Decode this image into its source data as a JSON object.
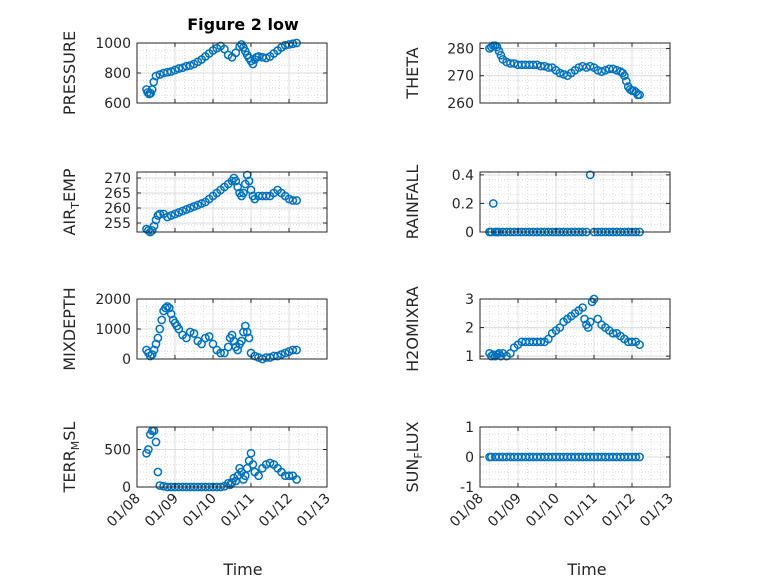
{
  "figure": {
    "title": "Figure 2 low",
    "xlabel": "Time",
    "x_ticks": [
      "01/08",
      "01/09",
      "01/10",
      "01/11",
      "01/12",
      "01/13"
    ]
  },
  "colors": {
    "marker": "#0072BD",
    "axis": "#262626",
    "grid": "#DCDCDC"
  },
  "chart_data": [
    {
      "type": "scatter",
      "ylabel": "PRESSURE",
      "ylim": [
        600,
        1000
      ],
      "yticks": [
        "600",
        "800",
        "1000"
      ],
      "xlim": [
        0,
        5
      ],
      "grid": true,
      "series": [
        {
          "x": [
            0.25,
            0.28,
            0.32,
            0.36,
            0.4,
            0.44,
            0.5,
            0.6,
            0.7,
            0.8,
            0.9,
            1.0,
            1.1,
            1.2,
            1.3,
            1.4,
            1.5,
            1.6,
            1.7,
            1.8,
            1.9,
            2.0,
            2.1,
            2.2,
            2.3,
            2.4,
            2.5,
            2.6,
            2.7,
            2.75,
            2.8,
            2.85,
            2.9,
            2.95,
            3.0,
            3.05,
            3.1,
            3.15,
            3.2,
            3.3,
            3.4,
            3.5,
            3.6,
            3.7,
            3.8,
            3.9,
            4.0,
            4.1,
            4.2
          ],
          "y": [
            690,
            670,
            660,
            665,
            690,
            740,
            780,
            790,
            800,
            805,
            810,
            820,
            830,
            835,
            845,
            850,
            860,
            875,
            890,
            910,
            930,
            950,
            965,
            980,
            960,
            920,
            905,
            935,
            975,
            990,
            970,
            945,
            920,
            900,
            880,
            860,
            890,
            905,
            910,
            905,
            900,
            910,
            930,
            950,
            970,
            985,
            990,
            995,
            1000
          ]
        }
      ]
    },
    {
      "type": "scatter",
      "ylabel": "THETA",
      "ylim": [
        260,
        282
      ],
      "yticks": [
        "260",
        "270",
        "280"
      ],
      "xlim": [
        0,
        5
      ],
      "grid": true,
      "series": [
        {
          "x": [
            0.25,
            0.3,
            0.35,
            0.4,
            0.45,
            0.5,
            0.55,
            0.6,
            0.7,
            0.8,
            0.9,
            1.0,
            1.1,
            1.2,
            1.3,
            1.4,
            1.5,
            1.6,
            1.7,
            1.8,
            1.9,
            2.0,
            2.1,
            2.2,
            2.3,
            2.4,
            2.5,
            2.6,
            2.7,
            2.8,
            2.9,
            3.0,
            3.1,
            3.2,
            3.3,
            3.4,
            3.5,
            3.6,
            3.7,
            3.75,
            3.8,
            3.85,
            3.9,
            3.95,
            4.0,
            4.05,
            4.1,
            4.15,
            4.2
          ],
          "y": [
            280,
            280.5,
            281,
            281,
            280.5,
            279,
            277.5,
            276,
            275,
            274.5,
            274.5,
            274,
            274,
            274,
            274,
            274,
            274,
            273.5,
            273.5,
            273,
            273,
            272,
            271,
            270.5,
            270,
            271,
            272,
            273,
            273.5,
            273,
            273.5,
            273,
            272,
            271.5,
            272,
            272.5,
            272.5,
            272,
            271.5,
            271,
            270,
            268,
            266,
            265,
            264.5,
            264.5,
            264,
            263,
            263
          ]
        }
      ]
    },
    {
      "type": "scatter",
      "ylabel": "AIR_TEMP",
      "ylim": [
        252,
        272
      ],
      "yticks": [
        "255",
        "260",
        "265",
        "270"
      ],
      "xlim": [
        0,
        5
      ],
      "grid": true,
      "series": [
        {
          "x": [
            0.25,
            0.3,
            0.35,
            0.4,
            0.45,
            0.5,
            0.55,
            0.6,
            0.7,
            0.8,
            0.9,
            1.0,
            1.1,
            1.2,
            1.3,
            1.4,
            1.5,
            1.6,
            1.7,
            1.8,
            1.9,
            2.0,
            2.1,
            2.2,
            2.3,
            2.4,
            2.5,
            2.55,
            2.6,
            2.65,
            2.7,
            2.75,
            2.8,
            2.85,
            2.9,
            2.95,
            3.0,
            3.05,
            3.1,
            3.2,
            3.3,
            3.4,
            3.5,
            3.6,
            3.7,
            3.8,
            3.9,
            4.0,
            4.1,
            4.2
          ],
          "y": [
            253,
            252.5,
            252,
            252.5,
            254,
            256,
            257.5,
            258,
            258,
            257,
            257.5,
            258,
            258.5,
            259,
            259.5,
            260,
            260.5,
            261,
            261.5,
            262,
            263,
            264,
            265,
            266,
            267,
            268,
            269,
            270,
            269,
            267,
            265,
            264,
            265,
            268,
            271,
            269,
            266,
            264,
            263,
            264,
            264,
            264,
            264,
            265,
            266,
            265,
            264,
            263,
            262.5,
            262.5
          ]
        }
      ]
    },
    {
      "type": "scatter",
      "ylabel": "RAINFALL",
      "ylim": [
        0,
        0.42
      ],
      "yticks": [
        "0",
        "0.2",
        "0.4"
      ],
      "xlim": [
        0,
        5
      ],
      "grid": true,
      "series": [
        {
          "x": [
            0.25,
            0.3,
            0.35,
            0.4,
            0.45,
            0.5,
            0.6,
            0.7,
            0.8,
            0.9,
            1.0,
            1.1,
            1.2,
            1.3,
            1.4,
            1.5,
            1.6,
            1.7,
            1.8,
            1.9,
            2.0,
            2.1,
            2.2,
            2.3,
            2.4,
            2.5,
            2.6,
            2.7,
            2.8,
            2.9,
            3.0,
            3.1,
            3.2,
            3.3,
            3.4,
            3.5,
            3.6,
            3.7,
            3.8,
            3.9,
            4.0,
            4.1,
            4.2
          ],
          "y": [
            0,
            0,
            0.2,
            0,
            0,
            0,
            0,
            0,
            0,
            0,
            0,
            0,
            0,
            0,
            0,
            0,
            0,
            0,
            0,
            0,
            0,
            0,
            0,
            0,
            0,
            0,
            0,
            0,
            0,
            0.4,
            0,
            0,
            0,
            0,
            0,
            0,
            0,
            0,
            0,
            0,
            0,
            0,
            0
          ]
        }
      ]
    },
    {
      "type": "scatter",
      "ylabel": "MIXDEPTH",
      "ylim": [
        0,
        2000
      ],
      "yticks": [
        "0",
        "1000",
        "2000"
      ],
      "xlim": [
        0,
        5
      ],
      "grid": true,
      "series": [
        {
          "x": [
            0.25,
            0.3,
            0.35,
            0.4,
            0.45,
            0.5,
            0.55,
            0.6,
            0.65,
            0.7,
            0.75,
            0.8,
            0.85,
            0.9,
            0.95,
            1.0,
            1.05,
            1.1,
            1.2,
            1.3,
            1.4,
            1.5,
            1.6,
            1.7,
            1.8,
            1.9,
            2.0,
            2.1,
            2.2,
            2.3,
            2.4,
            2.45,
            2.5,
            2.55,
            2.6,
            2.65,
            2.7,
            2.75,
            2.8,
            2.85,
            2.9,
            2.95,
            3.0,
            3.1,
            3.2,
            3.3,
            3.4,
            3.5,
            3.6,
            3.7,
            3.8,
            3.9,
            4.0,
            4.1,
            4.2
          ],
          "y": [
            300,
            200,
            100,
            150,
            300,
            500,
            700,
            1000,
            1300,
            1600,
            1700,
            1750,
            1700,
            1500,
            1300,
            1200,
            1100,
            1000,
            800,
            700,
            900,
            850,
            600,
            500,
            700,
            750,
            500,
            300,
            200,
            200,
            400,
            700,
            800,
            600,
            400,
            300,
            500,
            600,
            900,
            1100,
            900,
            700,
            200,
            100,
            50,
            0,
            50,
            50,
            100,
            100,
            150,
            200,
            250,
            300,
            300
          ]
        }
      ]
    },
    {
      "type": "scatter",
      "ylabel": "H2OMIXRA",
      "ylim": [
        0.9,
        3
      ],
      "yticks": [
        "1",
        "2",
        "3"
      ],
      "xlim": [
        0,
        5
      ],
      "grid": true,
      "series": [
        {
          "x": [
            0.25,
            0.3,
            0.35,
            0.4,
            0.45,
            0.5,
            0.55,
            0.6,
            0.7,
            0.8,
            0.9,
            1.0,
            1.1,
            1.2,
            1.3,
            1.4,
            1.5,
            1.6,
            1.7,
            1.8,
            1.9,
            2.0,
            2.1,
            2.2,
            2.3,
            2.4,
            2.5,
            2.6,
            2.7,
            2.75,
            2.8,
            2.85,
            2.9,
            2.95,
            3.0,
            3.1,
            3.2,
            3.3,
            3.4,
            3.5,
            3.6,
            3.7,
            3.8,
            3.9,
            4.0,
            4.1,
            4.2
          ],
          "y": [
            1.1,
            1.0,
            1.05,
            1.0,
            1.05,
            1.1,
            1.0,
            1.1,
            1.0,
            1.1,
            1.3,
            1.4,
            1.5,
            1.5,
            1.5,
            1.5,
            1.5,
            1.5,
            1.5,
            1.6,
            1.8,
            1.9,
            2.0,
            2.2,
            2.3,
            2.4,
            2.5,
            2.6,
            2.7,
            2.3,
            2.1,
            2.0,
            2.2,
            2.9,
            3.0,
            2.3,
            2.1,
            2.0,
            1.9,
            1.8,
            1.8,
            1.7,
            1.6,
            1.5,
            1.5,
            1.5,
            1.4
          ]
        }
      ]
    },
    {
      "type": "scatter",
      "ylabel": "TERR_MSL",
      "ylim": [
        0,
        800
      ],
      "yticks": [
        "0",
        "500"
      ],
      "xlim": [
        0,
        5
      ],
      "grid": true,
      "series": [
        {
          "x": [
            0.25,
            0.3,
            0.35,
            0.4,
            0.45,
            0.5,
            0.55,
            0.6,
            0.7,
            0.8,
            0.9,
            1.0,
            1.1,
            1.2,
            1.3,
            1.4,
            1.5,
            1.6,
            1.7,
            1.8,
            1.9,
            2.0,
            2.1,
            2.2,
            2.3,
            2.4,
            2.45,
            2.5,
            2.55,
            2.6,
            2.65,
            2.7,
            2.75,
            2.8,
            2.85,
            2.9,
            2.95,
            3.0,
            3.05,
            3.1,
            3.2,
            3.3,
            3.4,
            3.5,
            3.6,
            3.7,
            3.8,
            3.9,
            4.0,
            4.1,
            4.2
          ],
          "y": [
            450,
            500,
            700,
            750,
            750,
            600,
            200,
            20,
            10,
            0,
            0,
            0,
            0,
            0,
            0,
            0,
            0,
            0,
            0,
            0,
            0,
            0,
            0,
            0,
            10,
            50,
            30,
            60,
            120,
            80,
            150,
            250,
            200,
            100,
            150,
            250,
            350,
            450,
            300,
            200,
            150,
            250,
            300,
            320,
            300,
            250,
            200,
            150,
            150,
            150,
            100
          ]
        }
      ]
    },
    {
      "type": "scatter",
      "ylabel": "SUN_FLUX",
      "ylim": [
        -1,
        1
      ],
      "yticks": [
        "-1",
        "0",
        "1"
      ],
      "xlim": [
        0,
        5
      ],
      "grid": true,
      "series": [
        {
          "x": [
            0.25,
            0.3,
            0.4,
            0.5,
            0.6,
            0.7,
            0.8,
            0.9,
            1.0,
            1.1,
            1.2,
            1.3,
            1.4,
            1.5,
            1.6,
            1.7,
            1.8,
            1.9,
            2.0,
            2.1,
            2.2,
            2.3,
            2.4,
            2.5,
            2.6,
            2.7,
            2.8,
            2.9,
            3.0,
            3.1,
            3.2,
            3.3,
            3.4,
            3.5,
            3.6,
            3.7,
            3.8,
            3.9,
            4.0,
            4.1,
            4.2
          ],
          "y": [
            0,
            0,
            0,
            0,
            0,
            0,
            0,
            0,
            0,
            0,
            0,
            0,
            0,
            0,
            0,
            0,
            0,
            0,
            0,
            0,
            0,
            0,
            0,
            0,
            0,
            0,
            0,
            0,
            0,
            0,
            0,
            0,
            0,
            0,
            0,
            0,
            0,
            0,
            0,
            0,
            0
          ]
        }
      ]
    }
  ]
}
